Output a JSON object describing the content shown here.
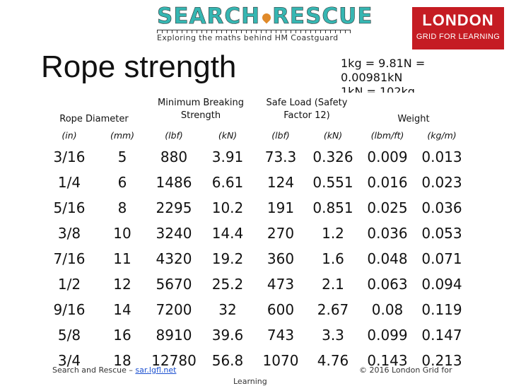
{
  "logo": {
    "word1": "SEARCH",
    "word2": "RESCUE",
    "tagline": "Exploring the maths behind HM Coastguard",
    "partner_line1": "LONDON",
    "partner_line2": "GRID FOR LEARNING",
    "partner_color": "#c51c23"
  },
  "title": "Rope strength",
  "conversions": [
    "1kg = 9.81N =",
    "0.00981kN",
    "1kN = 102kg"
  ],
  "table": {
    "groups": [
      {
        "label": "Rope Diameter"
      },
      {
        "label": "Minimum Breaking Strength"
      },
      {
        "label": "Safe Load (Safety Factor 12)"
      },
      {
        "label": "Weight"
      }
    ],
    "units": [
      "(in)",
      "(mm)",
      "(lbf)",
      "(kN)",
      "(lbf)",
      "(kN)",
      "(lbm/ft)",
      "(kg/m)"
    ],
    "rows": [
      [
        "3/16",
        "5",
        "880",
        "3.91",
        "73.3",
        "0.326",
        "0.009",
        "0.013"
      ],
      [
        "1/4",
        "6",
        "1486",
        "6.61",
        "124",
        "0.551",
        "0.016",
        "0.023"
      ],
      [
        "5/16",
        "8",
        "2295",
        "10.2",
        "191",
        "0.851",
        "0.025",
        "0.036"
      ],
      [
        "3/8",
        "10",
        "3240",
        "14.4",
        "270",
        "1.2",
        "0.036",
        "0.053"
      ],
      [
        "7/16",
        "11",
        "4320",
        "19.2",
        "360",
        "1.6",
        "0.048",
        "0.071"
      ],
      [
        "1/2",
        "12",
        "5670",
        "25.2",
        "473",
        "2.1",
        "0.063",
        "0.094"
      ],
      [
        "9/16",
        "14",
        "7200",
        "32",
        "600",
        "2.67",
        "0.08",
        "0.119"
      ],
      [
        "5/8",
        "16",
        "8910",
        "39.6",
        "743",
        "3.3",
        "0.099",
        "0.147"
      ],
      [
        "3/4",
        "18",
        "12780",
        "56.8",
        "1070",
        "4.76",
        "0.143",
        "0.213"
      ]
    ]
  },
  "footer": {
    "left_text": "Search and Rescue – ",
    "left_link": "sar.lgfl.net",
    "right_text": "© 2016 London Grid for",
    "right_cut": "Learning"
  },
  "colors": {
    "logo_teal": "#36b6b2",
    "logo_pin": "#e08a2a",
    "link": "#1a4fd0"
  }
}
